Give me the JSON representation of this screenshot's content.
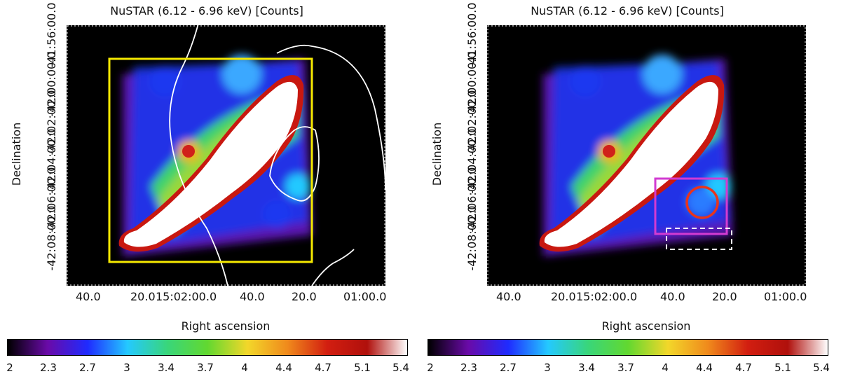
{
  "colors": {
    "background": "#000000",
    "box_yellow": "#f5e900",
    "box_magenta": "#d23bd2",
    "circle_red": "#e8341c",
    "contour_white": "#ffffff",
    "dashed_box": "#ffffff"
  },
  "colormap_stops": [
    "#000000",
    "#6a0aa8",
    "#1f2bff",
    "#24c9ff",
    "#39d67a",
    "#62d830",
    "#f2d72a",
    "#f08a1c",
    "#d21e10",
    "#b0100c",
    "#ffffff"
  ],
  "panels": [
    {
      "title": "NuSTAR (6.12 - 6.96 keV) [Counts]",
      "y_label": "Declination",
      "x_label": "Right ascension",
      "y_ticks": [
        "-41:56:00.0",
        "-42:00:00.0",
        "-42:02:00.0",
        "-42:04:00.0",
        "-42:06:00.0",
        "-42:08:00.0"
      ],
      "x_ticks": [
        "40.0",
        "20.0",
        "15:02:00.0",
        "40.0",
        "20.0",
        "01:00.0"
      ],
      "colorbar_ticks": [
        "2",
        "2.3",
        "2.7",
        "3",
        "3.4",
        "3.7",
        "4",
        "4.4",
        "4.7",
        "5.1",
        "5.4"
      ],
      "overlays": [
        "yellow-region-box",
        "white-contours"
      ]
    },
    {
      "title": "NuSTAR (6.12 - 6.96 keV) [Counts]",
      "y_label": "Declination",
      "x_label": "Right ascension",
      "y_ticks": [
        "-41:56:00.0",
        "-42:00:00.0",
        "-42:02:00.0",
        "-42:04:00.0",
        "-42:06:00.0",
        "-42:08:00.0"
      ],
      "x_ticks": [
        "40.0",
        "20.0",
        "15:02:00.0",
        "40.0",
        "20.0",
        "01:00.0"
      ],
      "colorbar_ticks": [
        "2",
        "2.3",
        "2.7",
        "3",
        "3.4",
        "3.7",
        "4",
        "4.4",
        "4.7",
        "5.1",
        "5.4"
      ],
      "overlays": [
        "magenta-region-box",
        "red-source-circle",
        "dashed-background-box"
      ]
    }
  ]
}
